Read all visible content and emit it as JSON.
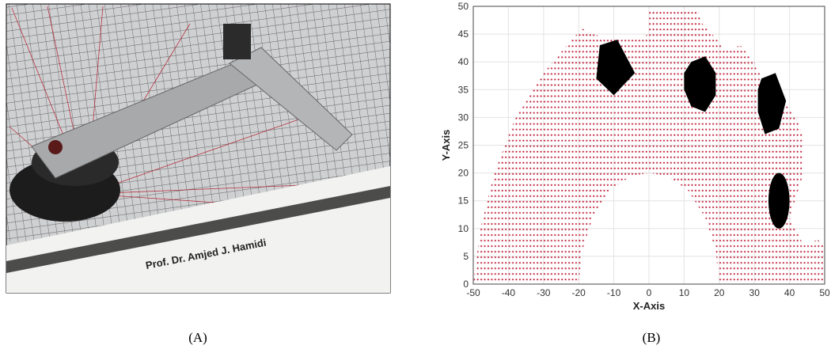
{
  "photo": {
    "caption": "(A)",
    "text": "Prof. Dr. Amjed J. Hamidi"
  },
  "chart_data": {
    "type": "region",
    "caption": "(B)",
    "xlabel": "X-Axis",
    "ylabel": "Y-Axis",
    "xlim": [
      -50,
      50
    ],
    "ylim": [
      0,
      50
    ],
    "xticks": [
      -50,
      -40,
      -30,
      -20,
      -10,
      0,
      10,
      20,
      30,
      40,
      50
    ],
    "yticks": [
      0,
      5,
      10,
      15,
      20,
      25,
      30,
      35,
      40,
      45,
      50
    ],
    "grid": true,
    "workspace": {
      "color": "#c0203a",
      "outer": [
        [
          -50,
          0
        ],
        [
          -48,
          10
        ],
        [
          -44,
          20
        ],
        [
          -38,
          30
        ],
        [
          -30,
          38
        ],
        [
          -22,
          44
        ],
        [
          -19,
          46
        ],
        [
          -16,
          45
        ],
        [
          -10,
          44
        ],
        [
          -4,
          44
        ],
        [
          0,
          45
        ],
        [
          0,
          49
        ],
        [
          14,
          49
        ],
        [
          15,
          47
        ],
        [
          18,
          45
        ],
        [
          22,
          42
        ],
        [
          26,
          43
        ],
        [
          30,
          40
        ],
        [
          33,
          36
        ],
        [
          38,
          33
        ],
        [
          42,
          30
        ],
        [
          44,
          26
        ],
        [
          44,
          20
        ],
        [
          42,
          16
        ],
        [
          40,
          12
        ],
        [
          44,
          7
        ],
        [
          48,
          8
        ],
        [
          50,
          7
        ],
        [
          50,
          0
        ],
        [
          20,
          0
        ]
      ],
      "hole": [
        [
          20,
          0
        ],
        [
          19,
          6
        ],
        [
          16,
          12
        ],
        [
          11,
          17
        ],
        [
          5,
          19.5
        ],
        [
          0,
          20
        ],
        [
          -5,
          19.5
        ],
        [
          -11,
          17
        ],
        [
          -16,
          12
        ],
        [
          -19,
          6
        ],
        [
          -20,
          0
        ]
      ]
    },
    "obstacles": {
      "color": "#000000",
      "polygons": [
        [
          [
            -14,
            43
          ],
          [
            -9,
            44
          ],
          [
            -4,
            38
          ],
          [
            -10,
            34
          ],
          [
            -15,
            37
          ]
        ],
        [
          [
            12,
            40
          ],
          [
            16,
            41
          ],
          [
            19,
            38
          ],
          [
            19,
            34
          ],
          [
            16,
            31
          ],
          [
            12,
            32
          ],
          [
            10,
            35
          ],
          [
            10,
            38
          ]
        ],
        [
          [
            32,
            37
          ],
          [
            36,
            38
          ],
          [
            39,
            33
          ],
          [
            37,
            28
          ],
          [
            33,
            27
          ],
          [
            31,
            31
          ],
          [
            31,
            35
          ]
        ]
      ],
      "ellipses": [
        {
          "center": [
            37,
            15
          ],
          "radii": [
            3,
            5
          ]
        }
      ]
    }
  }
}
